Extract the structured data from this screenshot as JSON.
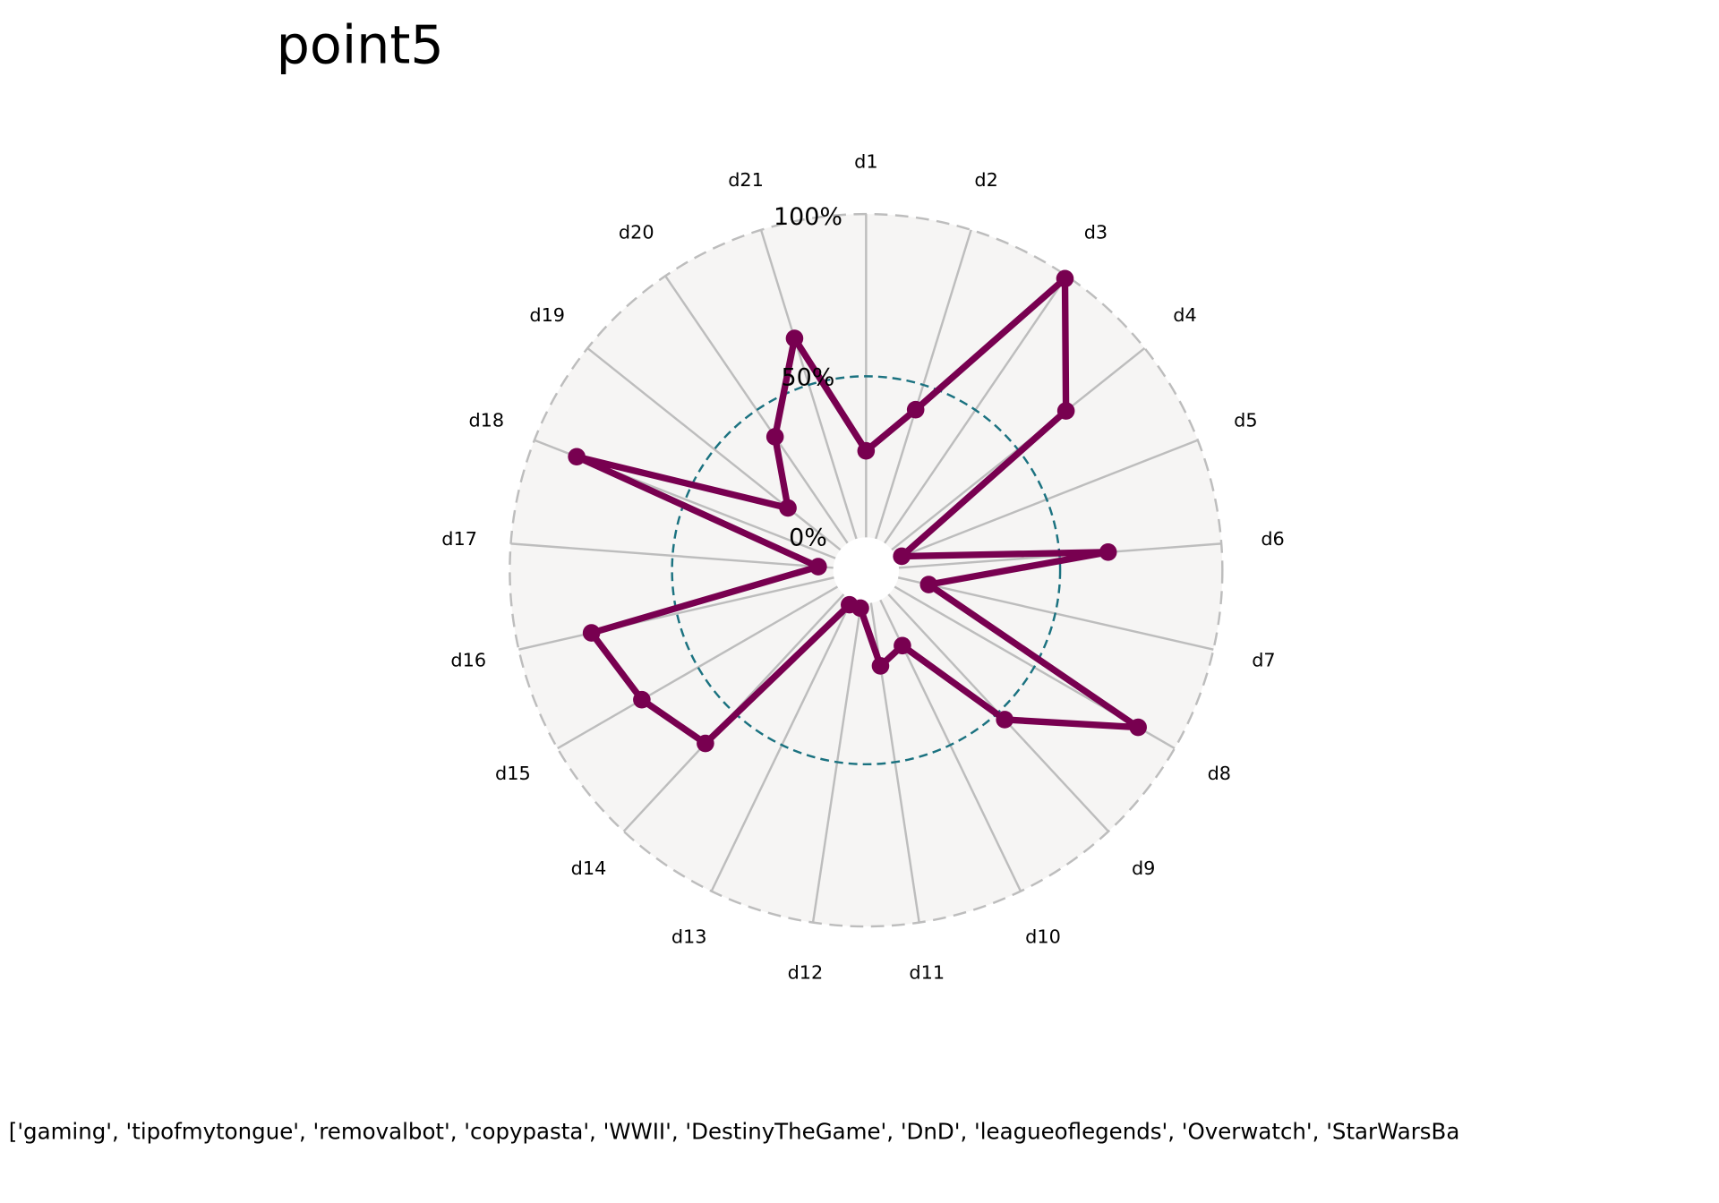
{
  "chart_data": {
    "type": "radar",
    "title": "point5",
    "caption": "['gaming', 'tipofmytongue', 'removalbot', 'copypasta', 'WWII', 'DestinyTheGame', 'DnD', 'leagueoflegends', 'Overwatch', 'StarWarsBa",
    "categories": [
      "d1",
      "d2",
      "d3",
      "d4",
      "d5",
      "d6",
      "d7",
      "d8",
      "d9",
      "d10",
      "d11",
      "d12",
      "d13",
      "d14",
      "d15",
      "d16",
      "d17",
      "d18",
      "d19",
      "d20",
      "d21"
    ],
    "values": [
      27,
      42,
      99,
      69,
      2,
      65,
      10,
      87,
      53,
      16,
      20,
      2,
      2,
      63,
      70,
      77,
      5,
      86,
      21,
      40,
      65
    ],
    "color": "#780050",
    "rlim": [
      0,
      100
    ],
    "rticks": [
      {
        "value": 0,
        "label": "0%"
      },
      {
        "value": 50,
        "label": "50%"
      },
      {
        "value": 100,
        "label": "100%"
      }
    ]
  }
}
